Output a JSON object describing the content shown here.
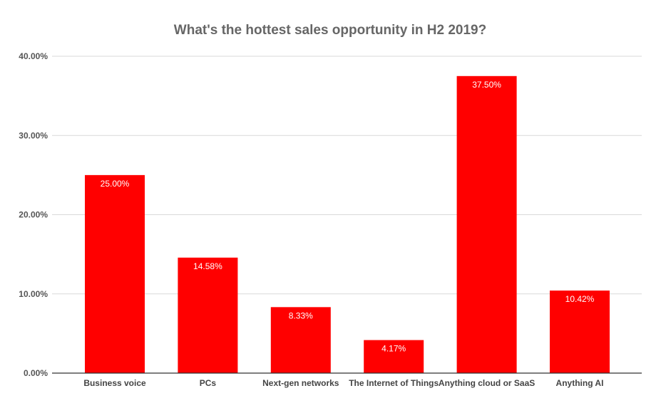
{
  "chart_data": {
    "type": "bar",
    "title": "What's the hottest sales opportunity in H2 2019?",
    "xlabel": "",
    "ylabel": "",
    "categories": [
      "Business voice",
      "PCs",
      "Next-gen networks",
      "The Internet of Things",
      "Anything cloud or SaaS",
      "Anything AI"
    ],
    "values": [
      25.0,
      14.58,
      8.33,
      4.17,
      37.5,
      10.42
    ],
    "data_labels": [
      "25.00%",
      "14.58%",
      "8.33%",
      "4.17%",
      "37.50%",
      "10.42%"
    ],
    "ylim": [
      0,
      40
    ],
    "yticks": [
      0,
      10,
      20,
      30,
      40
    ],
    "ytick_labels": [
      "0.00%",
      "10.00%",
      "20.00%",
      "30.00%",
      "40.00%"
    ],
    "bar_color": "#ff0000",
    "grid": true,
    "legend": "none"
  }
}
